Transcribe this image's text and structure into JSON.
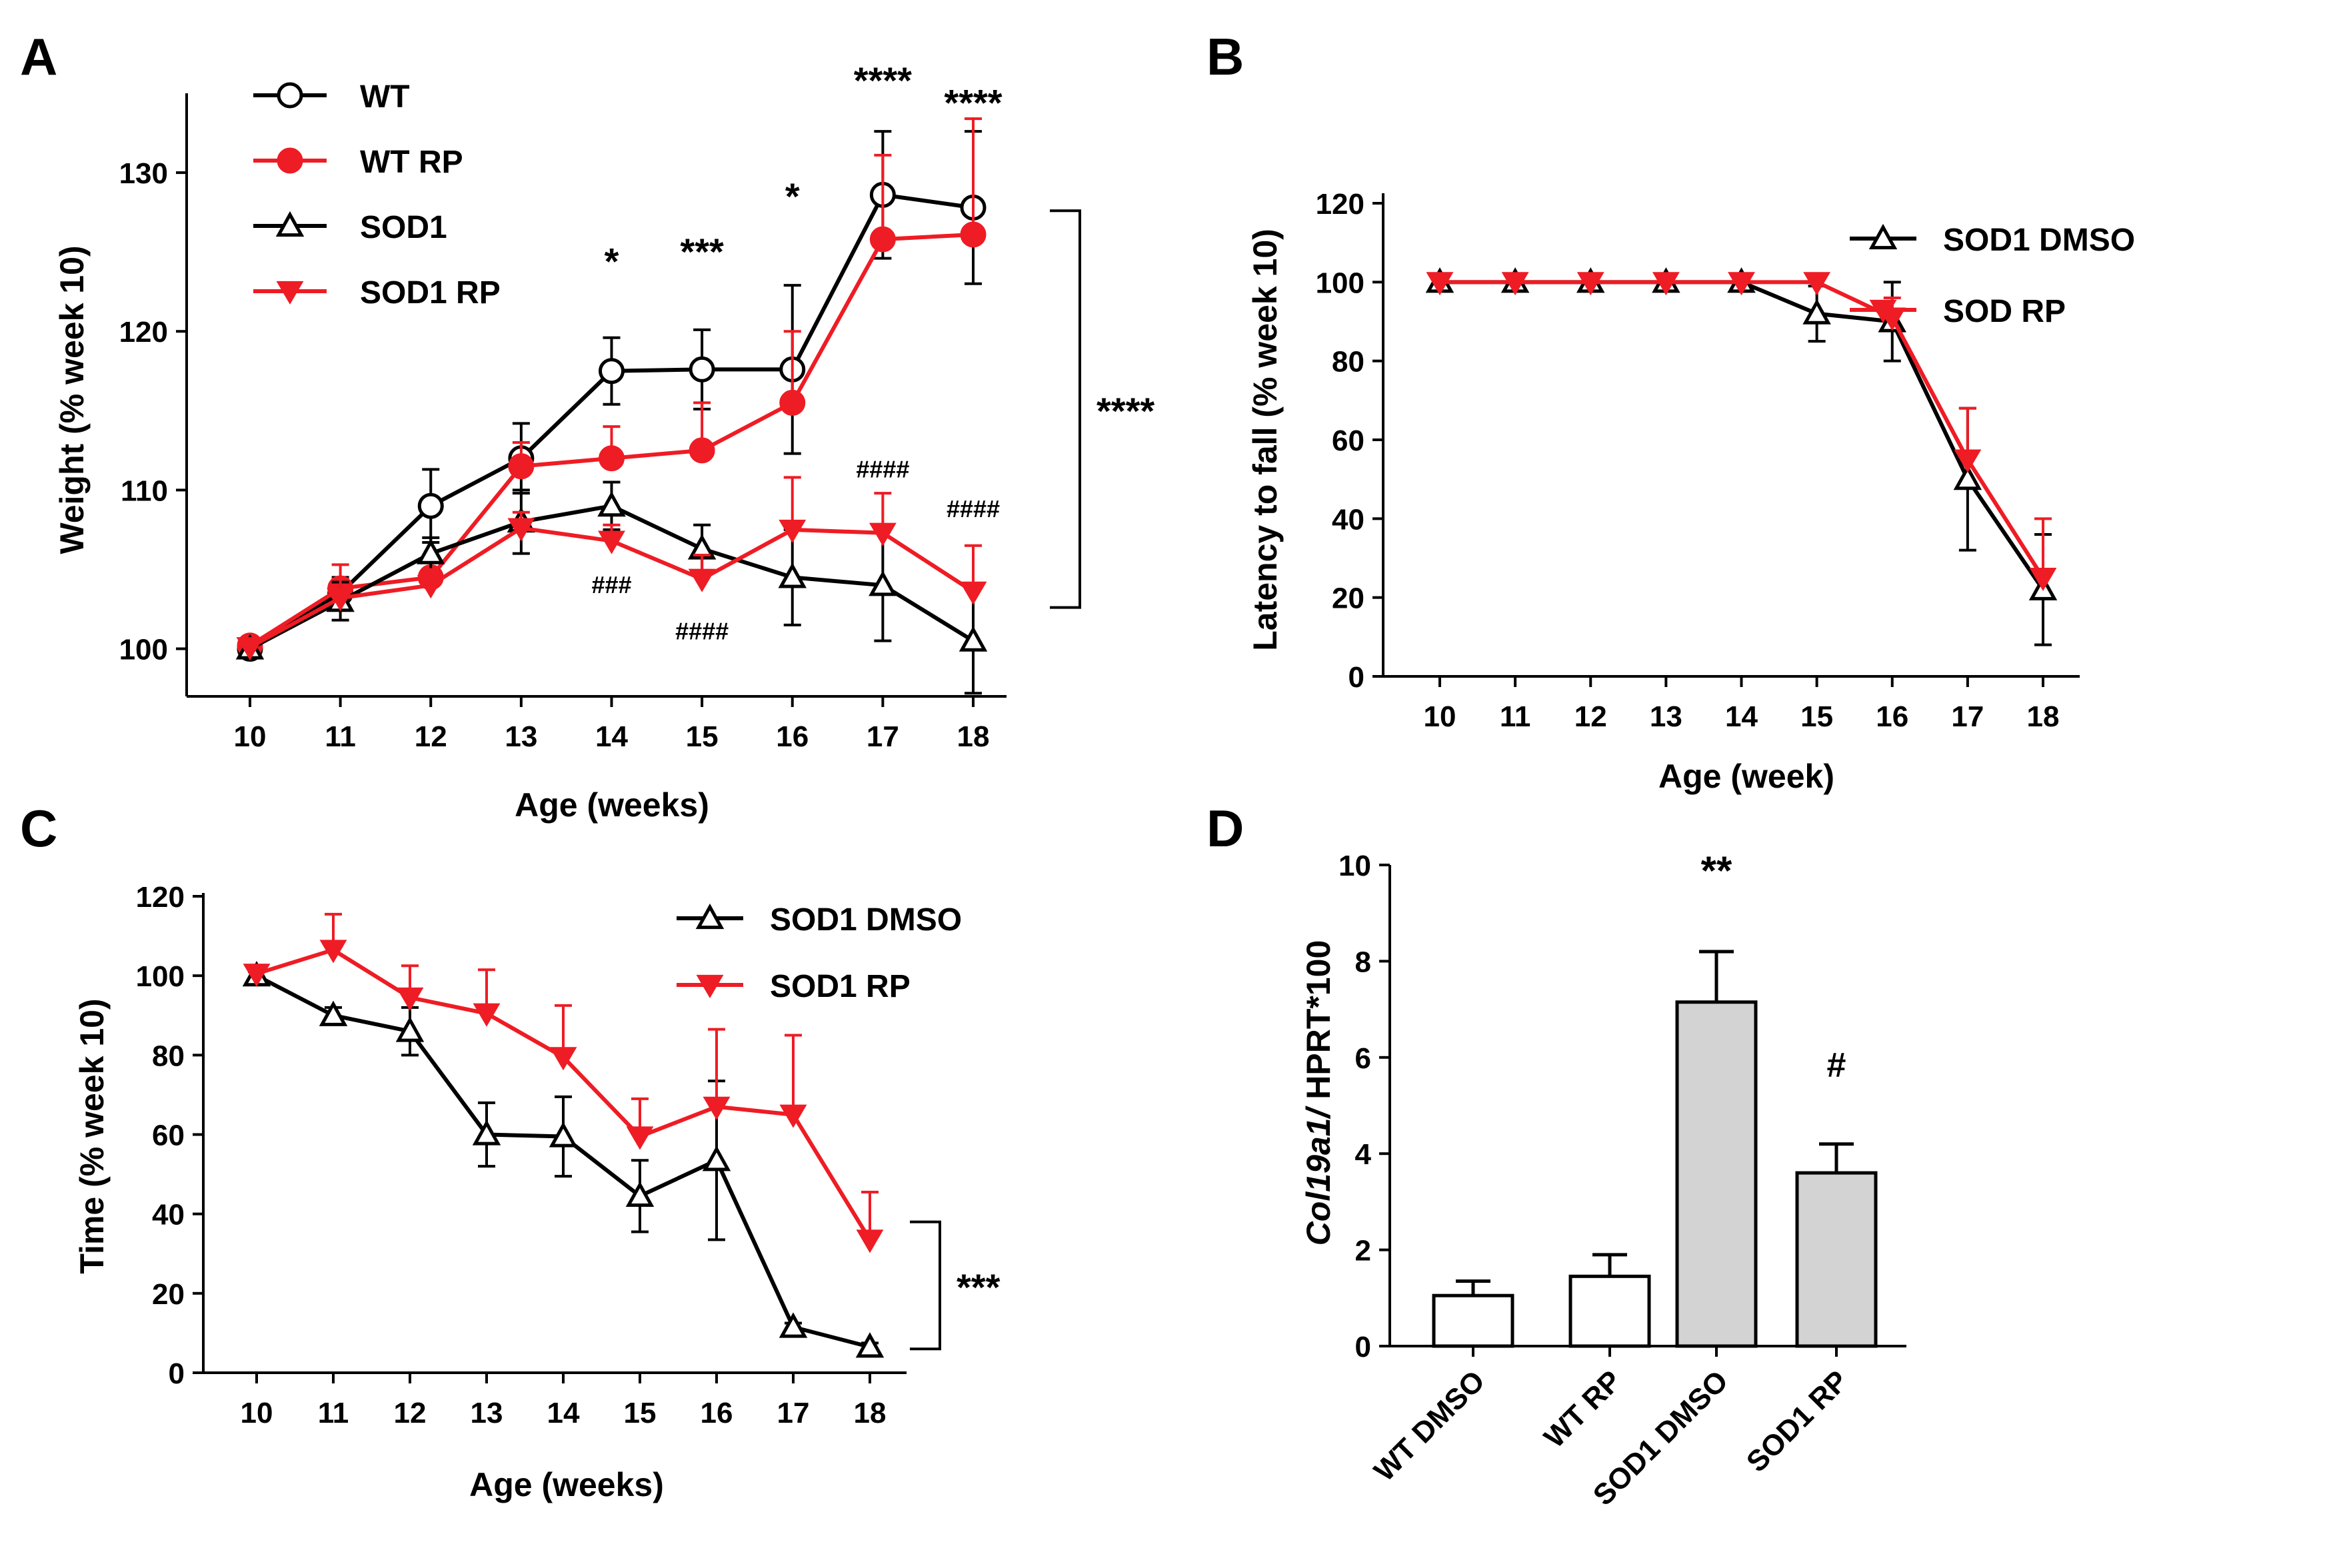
{
  "colors": {
    "black": "#000000",
    "red": "#ee1c24",
    "bar_gray": "#d3d3d3",
    "bar_white": "#ffffff"
  },
  "chart_data": [
    {
      "panel": "A",
      "type": "line",
      "xlabel": "Age (weeks)",
      "ylabel": "Weight (% week 10)",
      "x": [
        10,
        11,
        12,
        13,
        14,
        15,
        16,
        17,
        18
      ],
      "ylim": [
        97,
        135
      ],
      "yticks": [
        100,
        110,
        120,
        130
      ],
      "legend_position": "top-left",
      "series": [
        {
          "name": "WT",
          "color": "#000000",
          "marker": "circle-open",
          "values": [
            100,
            103.5,
            109,
            112,
            117.5,
            117.6,
            117.6,
            128.6,
            127.8
          ],
          "err": [
            0.5,
            1,
            2.3,
            2.2,
            2.1,
            2.5,
            5.3,
            4,
            4.8
          ]
        },
        {
          "name": "WT RP",
          "color": "#ee1c24",
          "marker": "circle-filled",
          "values": [
            100.2,
            103.8,
            104.5,
            111.5,
            112,
            112.5,
            115.5,
            125.8,
            126.1
          ],
          "err": [
            0.5,
            1.5,
            1,
            1.5,
            2,
            3,
            4.5,
            5.3,
            7.3
          ]
        },
        {
          "name": "SOD1",
          "color": "#000000",
          "marker": "triangle-up-open",
          "values": [
            100,
            103,
            106,
            108,
            109,
            106.3,
            104.5,
            104,
            100.5
          ],
          "err": [
            0.5,
            1.2,
            1,
            2,
            1.5,
            1.5,
            3,
            3.5,
            3.3
          ]
        },
        {
          "name": "SOD1 RP",
          "color": "#ee1c24",
          "marker": "triangle-down-filled",
          "values": [
            100.1,
            103.2,
            104,
            107.6,
            106.8,
            104.4,
            107.5,
            107.3,
            103.6
          ],
          "err": [
            0.5,
            1.2,
            1,
            1,
            1,
            1.5,
            3.3,
            2.5,
            2.9
          ]
        }
      ],
      "annotations": [
        {
          "text": "*",
          "x": 14,
          "y": 123.6
        },
        {
          "text": "***",
          "x": 15,
          "y": 124.2
        },
        {
          "text": "*",
          "x": 16,
          "y": 127.7
        },
        {
          "text": "****",
          "x": 17,
          "y": 135
        },
        {
          "text": "****",
          "x": 18,
          "y": 133.6
        },
        {
          "text": "###",
          "x": 14,
          "y": 103.5
        },
        {
          "text": "####",
          "x": 15,
          "y": 100.6
        },
        {
          "text": "####",
          "x": 17,
          "y": 110.8
        },
        {
          "text": "####",
          "x": 18,
          "y": 108.3
        }
      ],
      "bracket": {
        "text": "****",
        "y_from": 102.6,
        "y_to": 127.6
      }
    },
    {
      "panel": "B",
      "type": "line",
      "xlabel": "Age (week)",
      "ylabel": "Latency to fall (% week 10)",
      "x": [
        10,
        11,
        12,
        13,
        14,
        15,
        16,
        17,
        18
      ],
      "ylim": [
        0,
        120
      ],
      "yticks": [
        0,
        20,
        40,
        60,
        80,
        100,
        120
      ],
      "legend_position": "top-right",
      "series": [
        {
          "name": "SOD1 DMSO",
          "color": "#000000",
          "marker": "triangle-up-open",
          "values": [
            100,
            100,
            100,
            100,
            100,
            92,
            90,
            50,
            22
          ],
          "err": [
            1,
            0,
            0,
            0,
            1,
            7,
            10,
            18,
            14
          ]
        },
        {
          "name": "SOD RP",
          "color": "#ee1c24",
          "marker": "triangle-down-filled",
          "values": [
            100,
            100,
            100,
            100,
            100,
            100,
            91,
            55,
            25
          ],
          "err": [
            0,
            0,
            0,
            0,
            0,
            0,
            5,
            13,
            15
          ]
        }
      ]
    },
    {
      "panel": "C",
      "type": "line",
      "xlabel": "Age (weeks)",
      "ylabel": "Time (% week 10)",
      "x": [
        10,
        11,
        12,
        13,
        14,
        15,
        16,
        17,
        18
      ],
      "ylim": [
        0,
        120
      ],
      "yticks": [
        0,
        20,
        40,
        60,
        80,
        100,
        120
      ],
      "legend_position": "top-right",
      "series": [
        {
          "name": "SOD1 DMSO",
          "color": "#000000",
          "marker": "triangle-up-open",
          "values": [
            100,
            90,
            86,
            60,
            59.5,
            44.5,
            53.5,
            11.5,
            6.5
          ],
          "err": [
            1,
            2,
            6,
            8,
            10,
            9,
            20,
            1,
            1
          ]
        },
        {
          "name": "SOD1 RP",
          "color": "#ee1c24",
          "marker": "triangle-down-filled",
          "values": [
            100.5,
            106.5,
            94.5,
            90.5,
            79.5,
            59.5,
            67,
            65,
            33.5
          ],
          "err": [
            1,
            9,
            8,
            11,
            13,
            9.5,
            19.5,
            20,
            12
          ]
        }
      ],
      "bracket": {
        "text": "***",
        "y_from": 6,
        "y_to": 38
      }
    },
    {
      "panel": "D",
      "type": "bar",
      "ylabel_italic": "Col19a1/",
      "ylabel_rest": " HPRT*100",
      "categories": [
        "WT DMSO",
        "WT RP",
        "SOD1 DMSO",
        "SOD1 RP"
      ],
      "values": [
        1.05,
        1.45,
        7.15,
        3.6
      ],
      "err": [
        0.3,
        0.45,
        1.05,
        0.6
      ],
      "fills": [
        "#ffffff",
        "#ffffff",
        "#d3d3d3",
        "#d3d3d3"
      ],
      "ylim": [
        0,
        10
      ],
      "yticks": [
        0,
        2,
        4,
        6,
        8,
        10
      ],
      "annotations": [
        {
          "text": "**",
          "category": 2,
          "y": 9.6
        },
        {
          "text": "#",
          "category": 3,
          "y": 5.6
        }
      ]
    }
  ]
}
